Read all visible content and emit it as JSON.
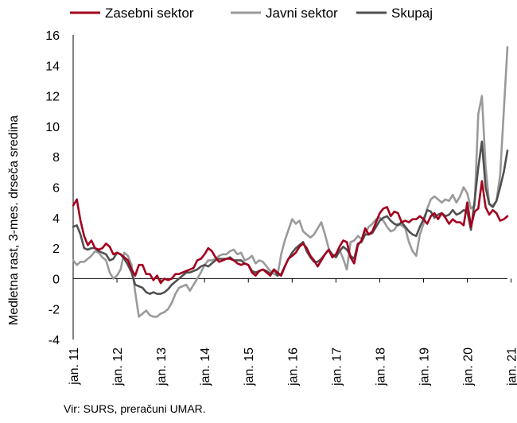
{
  "chart_data": {
    "type": "line",
    "title": "",
    "xlabel": "",
    "ylabel": "Medletna rast, 3-mes. drseča sredina",
    "ylim": [
      -4,
      16
    ],
    "yticks": [
      "-4",
      "-2",
      "0",
      "2",
      "4",
      "6",
      "8",
      "10",
      "12",
      "14",
      "16"
    ],
    "x_start": "2011-01",
    "x_step": "month",
    "x_tick_labels": [
      "jan. 11",
      "jan. 12",
      "jan. 13",
      "jan. 14",
      "jan. 15",
      "jan. 16",
      "jan. 17",
      "jan. 18",
      "jan. 19",
      "jan. 20",
      "jan. 21"
    ],
    "grid": "none",
    "legend": "top",
    "series": [
      {
        "name": "Zasebni sektor",
        "color": "#a3001e",
        "values": [
          4.8,
          5.2,
          3.8,
          2.8,
          2.2,
          2.5,
          2.0,
          1.9,
          2.0,
          2.3,
          2.1,
          1.6,
          1.7,
          1.6,
          1.4,
          1.2,
          0.6,
          0.2,
          0.9,
          0.9,
          0.3,
          0.3,
          -0.1,
          0.2,
          -0.3,
          0.0,
          -0.1,
          0.0,
          0.3,
          0.3,
          0.4,
          0.5,
          0.6,
          0.7,
          1.2,
          1.3,
          1.6,
          2.0,
          1.8,
          1.4,
          1.1,
          1.2,
          1.3,
          1.3,
          1.2,
          1.0,
          0.9,
          1.0,
          0.9,
          0.4,
          0.2,
          0.5,
          0.6,
          0.4,
          0.2,
          0.6,
          0.4,
          0.2,
          0.8,
          1.3,
          1.5,
          1.7,
          2.1,
          2.3,
          2.0,
          1.5,
          1.2,
          0.8,
          1.2,
          1.6,
          1.9,
          1.4,
          1.6,
          2.1,
          2.5,
          2.4,
          1.4,
          1.0,
          2.2,
          2.5,
          3.3,
          2.9,
          3.1,
          3.7,
          4.3,
          4.6,
          4.7,
          4.1,
          4.4,
          4.3,
          3.7,
          3.8,
          3.7,
          3.9,
          3.9,
          4.1,
          3.9,
          3.6,
          4.1,
          4.3,
          3.9,
          4.3,
          4.0,
          3.6,
          3.9,
          3.7,
          3.7,
          3.5,
          5.0,
          3.4,
          4.4,
          4.6,
          6.4,
          4.7,
          4.2,
          4.5,
          4.3,
          3.8,
          3.9,
          4.1
        ]
      },
      {
        "name": "Javni sektor",
        "color": "#9a9a9a",
        "values": [
          1.2,
          0.9,
          1.1,
          1.1,
          1.3,
          1.5,
          1.8,
          1.7,
          1.4,
          1.2,
          0.4,
          0.0,
          0.2,
          0.6,
          1.7,
          1.5,
          0.9,
          -0.9,
          -2.5,
          -2.3,
          -2.1,
          -2.4,
          -2.5,
          -2.5,
          -2.3,
          -2.2,
          -2.0,
          -1.6,
          -1.0,
          -0.6,
          -0.5,
          -0.4,
          -0.8,
          -0.4,
          0.0,
          0.4,
          0.9,
          1.2,
          1.2,
          1.3,
          1.5,
          1.6,
          1.6,
          1.8,
          1.9,
          1.6,
          1.7,
          1.2,
          1.3,
          1.5,
          1.0,
          1.2,
          1.1,
          0.8,
          0.5,
          0.3,
          0.2,
          1.6,
          2.5,
          3.2,
          3.9,
          3.6,
          3.8,
          3.1,
          2.9,
          2.7,
          2.9,
          3.3,
          3.7,
          2.9,
          2.0,
          1.4,
          1.6,
          1.9,
          1.3,
          0.6,
          2.4,
          2.5,
          2.8,
          2.6,
          3.0,
          3.4,
          3.6,
          3.9,
          4.0,
          3.8,
          3.4,
          3.1,
          3.2,
          3.6,
          3.5,
          3.3,
          2.4,
          1.8,
          1.5,
          2.9,
          3.6,
          4.6,
          5.2,
          5.4,
          5.2,
          5.0,
          5.2,
          5.1,
          5.5,
          5.0,
          5.4,
          6.0,
          5.6,
          4.6,
          4.8,
          10.8,
          12.0,
          7.4,
          4.9,
          4.8,
          5.1,
          6.8,
          11.0,
          15.2
        ]
      },
      {
        "name": "Skupaj",
        "color": "#505050",
        "values": [
          3.4,
          3.5,
          2.9,
          2.0,
          1.9,
          2.0,
          2.0,
          1.8,
          1.7,
          1.6,
          1.2,
          1.3,
          1.7,
          1.6,
          1.3,
          0.9,
          0.4,
          -0.4,
          -0.5,
          -0.6,
          -0.9,
          -1.0,
          -0.9,
          -1.0,
          -1.0,
          -0.9,
          -0.7,
          -0.4,
          -0.2,
          0.0,
          0.2,
          0.4,
          0.4,
          0.5,
          0.6,
          0.8,
          0.9,
          0.8,
          1.0,
          1.2,
          1.3,
          1.3,
          1.3,
          1.4,
          1.2,
          1.2,
          1.2,
          1.0,
          0.9,
          0.5,
          0.4,
          0.5,
          0.6,
          0.5,
          0.3,
          0.6,
          0.2,
          0.3,
          0.8,
          1.3,
          1.7,
          2.0,
          2.2,
          2.4,
          1.8,
          1.4,
          1.1,
          1.1,
          1.3,
          1.6,
          1.9,
          1.6,
          1.4,
          1.8,
          2.1,
          1.9,
          1.5,
          1.3,
          2.3,
          2.4,
          2.9,
          2.9,
          3.0,
          3.4,
          3.8,
          4.0,
          4.1,
          3.8,
          3.6,
          3.5,
          3.7,
          3.4,
          3.1,
          2.9,
          2.8,
          3.4,
          3.9,
          4.5,
          4.4,
          4.0,
          4.2,
          4.3,
          4.1,
          4.2,
          4.5,
          4.2,
          4.3,
          4.5,
          4.4,
          3.2,
          5.1,
          7.3,
          9.0,
          6.0,
          4.9,
          4.7,
          5.1,
          6.0,
          7.0,
          8.4
        ]
      }
    ]
  },
  "source": "Vir: SURS, preračuni UMAR."
}
